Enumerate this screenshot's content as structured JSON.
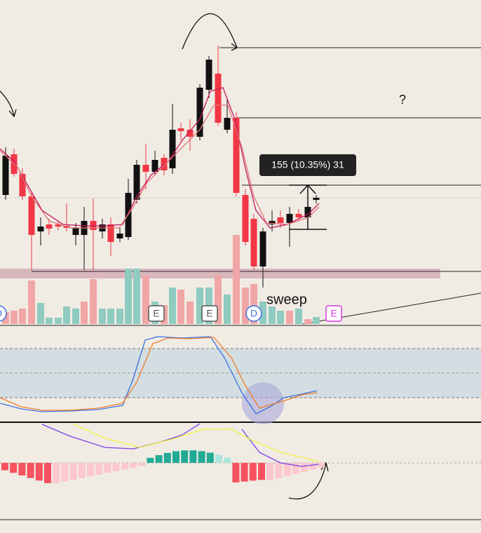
{
  "annotations": {
    "question": "?",
    "measure": "155 (10.35%) 31",
    "sweep": "sweep"
  },
  "events": [
    "D",
    "E",
    "E",
    "D",
    "E"
  ]
}
